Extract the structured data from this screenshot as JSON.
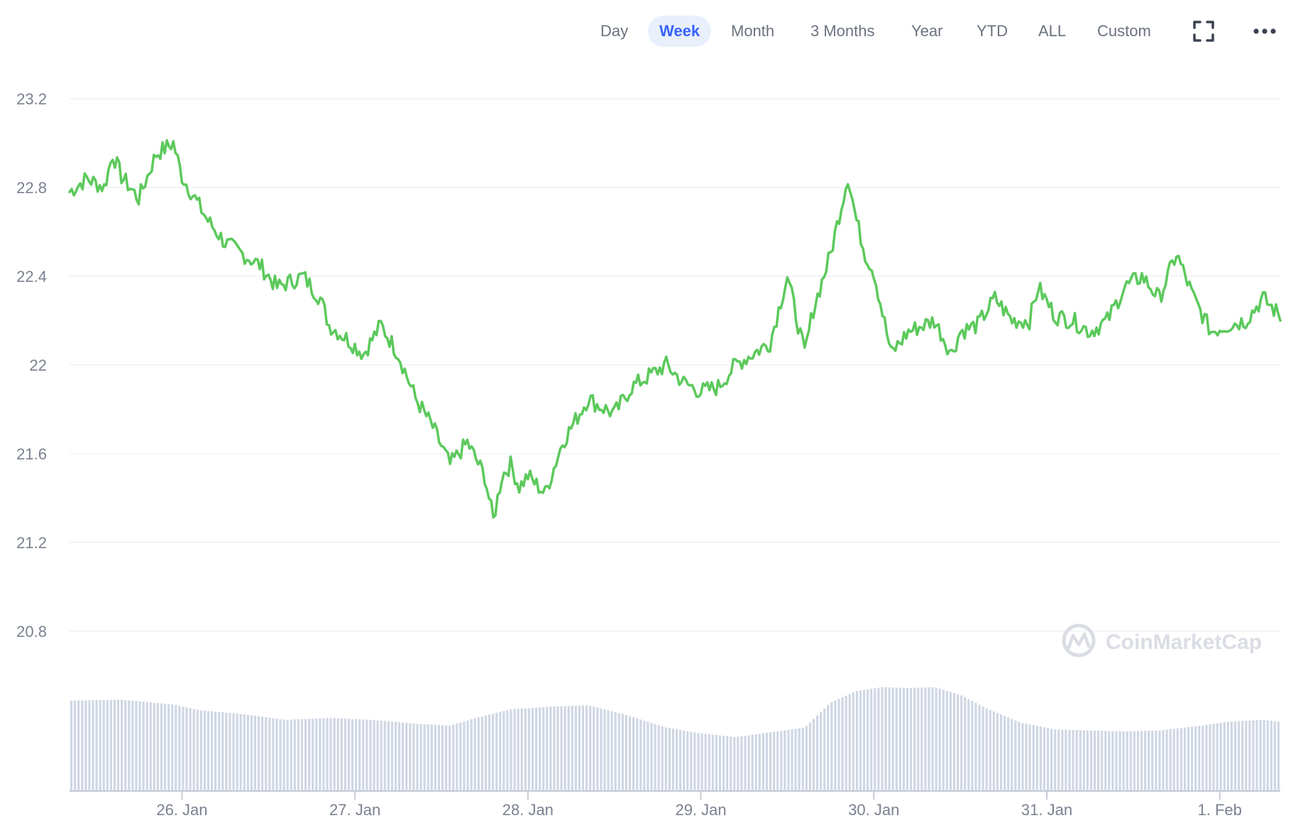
{
  "toolbar": {
    "ranges": [
      {
        "label": "Day",
        "active": false
      },
      {
        "label": "Week",
        "active": true
      },
      {
        "label": "Month",
        "active": false
      },
      {
        "label": "3 Months",
        "active": false
      },
      {
        "label": "Year",
        "active": false
      },
      {
        "label": "YTD",
        "active": false
      },
      {
        "label": "ALL",
        "active": false
      },
      {
        "label": "Custom",
        "active": false
      }
    ],
    "fullscreen_icon": "fullscreen-icon",
    "more_icon": "more-options-icon"
  },
  "watermark": {
    "text": "CoinMarketCap",
    "icon": "coinmarketcap-logo-icon"
  },
  "colors": {
    "line": "#5cc95c",
    "volume": "#cfd6e4",
    "grid": "#eef0f3",
    "accent": "#3861fb"
  },
  "chart_data": {
    "type": "line",
    "title": "",
    "xlabel": "",
    "ylabel": "",
    "ylim": [
      20.7,
      23.2
    ],
    "yticks": [
      23.2,
      22.8,
      22.4,
      22,
      21.6,
      21.2,
      20.8
    ],
    "xlim": [
      0,
      7.0
    ],
    "xticks": [
      {
        "value": 0.65,
        "label": "26. Jan"
      },
      {
        "value": 1.65,
        "label": "27. Jan"
      },
      {
        "value": 2.65,
        "label": "28. Jan"
      },
      {
        "value": 3.65,
        "label": "29. Jan"
      },
      {
        "value": 4.65,
        "label": "30. Jan"
      },
      {
        "value": 5.65,
        "label": "31. Jan"
      },
      {
        "value": 6.65,
        "label": "1. Feb"
      }
    ],
    "grid": true,
    "legend": "none",
    "series": [
      {
        "kind": "price",
        "x": [
          0,
          0.1,
          0.2,
          0.25,
          0.3,
          0.4,
          0.5,
          0.6,
          0.65,
          0.8,
          0.9,
          1.0,
          1.1,
          1.2,
          1.35,
          1.45,
          1.5,
          1.6,
          1.7,
          1.8,
          1.9,
          2.0,
          2.1,
          2.2,
          2.3,
          2.4,
          2.45,
          2.5,
          2.55,
          2.6,
          2.65,
          2.75,
          2.85,
          3.0,
          3.05,
          3.15,
          3.25,
          3.35,
          3.45,
          3.55,
          3.65,
          3.75,
          3.85,
          3.95,
          4.05,
          4.15,
          4.25,
          4.3,
          4.4,
          4.5,
          4.55,
          4.6,
          4.65,
          4.75,
          4.85,
          5.0,
          5.1,
          5.15,
          5.25,
          5.35,
          5.45,
          5.55,
          5.6,
          5.7,
          5.8,
          5.9,
          6.0,
          6.1,
          6.2,
          6.3,
          6.4,
          6.5,
          6.6,
          6.7,
          6.8,
          6.9,
          7.0
        ],
        "values": [
          22.78,
          22.84,
          22.8,
          22.95,
          22.85,
          22.75,
          22.95,
          23.0,
          22.85,
          22.65,
          22.55,
          22.5,
          22.45,
          22.35,
          22.4,
          22.3,
          22.18,
          22.12,
          22.05,
          22.18,
          22.05,
          21.85,
          21.72,
          21.55,
          21.65,
          21.5,
          21.3,
          21.5,
          21.55,
          21.45,
          21.5,
          21.42,
          21.65,
          21.85,
          21.82,
          21.78,
          21.9,
          21.95,
          22.0,
          21.92,
          21.88,
          21.9,
          22.0,
          22.05,
          22.1,
          22.4,
          22.05,
          22.25,
          22.5,
          22.85,
          22.65,
          22.5,
          22.42,
          22.05,
          22.15,
          22.2,
          22.05,
          22.15,
          22.18,
          22.3,
          22.2,
          22.2,
          22.35,
          22.22,
          22.2,
          22.15,
          22.2,
          22.35,
          22.4,
          22.3,
          22.5,
          22.3,
          22.15,
          22.18,
          22.2,
          22.3,
          22.22
        ]
      },
      {
        "kind": "volume",
        "x": [
          0,
          0.3,
          0.6,
          0.75,
          1.0,
          1.25,
          1.5,
          1.75,
          2.0,
          2.2,
          2.35,
          2.55,
          2.8,
          3.0,
          3.2,
          3.45,
          3.65,
          3.85,
          4.05,
          4.25,
          4.4,
          4.55,
          4.7,
          4.85,
          5.0,
          5.15,
          5.3,
          5.5,
          5.7,
          5.9,
          6.1,
          6.3,
          6.5,
          6.7,
          6.9,
          7.0
        ],
        "values": [
          0.94,
          0.95,
          0.9,
          0.84,
          0.8,
          0.74,
          0.76,
          0.74,
          0.7,
          0.68,
          0.76,
          0.85,
          0.88,
          0.89,
          0.8,
          0.66,
          0.6,
          0.56,
          0.61,
          0.66,
          0.92,
          1.04,
          1.08,
          1.07,
          1.08,
          1.0,
          0.86,
          0.71,
          0.64,
          0.63,
          0.62,
          0.63,
          0.67,
          0.72,
          0.74,
          0.72
        ]
      }
    ]
  }
}
